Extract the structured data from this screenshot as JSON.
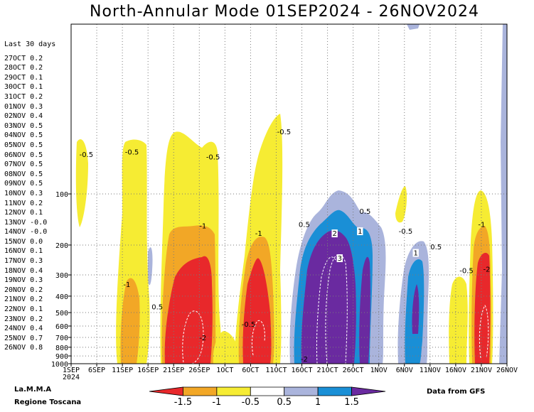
{
  "title": "North-Annular Mode 01SEP2024 - 26NOV2024",
  "sidebar": {
    "header": "Last 30 days",
    "entries": [
      {
        "date": "27OCT",
        "value": "0.2"
      },
      {
        "date": "28OCT",
        "value": "0.2"
      },
      {
        "date": "29OCT",
        "value": "0.1"
      },
      {
        "date": "30OCT",
        "value": "0.1"
      },
      {
        "date": "31OCT",
        "value": "0.2"
      },
      {
        "date": "01NOV",
        "value": "0.3"
      },
      {
        "date": "02NOV",
        "value": "0.4"
      },
      {
        "date": "03NOV",
        "value": "0.5"
      },
      {
        "date": "04NOV",
        "value": "0.5"
      },
      {
        "date": "05NOV",
        "value": "0.5"
      },
      {
        "date": "06NOV",
        "value": "0.5"
      },
      {
        "date": "07NOV",
        "value": "0.5"
      },
      {
        "date": "08NOV",
        "value": "0.5"
      },
      {
        "date": "09NOV",
        "value": "0.5"
      },
      {
        "date": "10NOV",
        "value": "0.3"
      },
      {
        "date": "11NOV",
        "value": "0.2"
      },
      {
        "date": "12NOV",
        "value": "0.1"
      },
      {
        "date": "13NOV",
        "value": "-0.0"
      },
      {
        "date": "14NOV",
        "value": "-0.0"
      },
      {
        "date": "15NOV",
        "value": "0.0"
      },
      {
        "date": "16NOV",
        "value": "0.1"
      },
      {
        "date": "17NOV",
        "value": "0.3"
      },
      {
        "date": "18NOV",
        "value": "0.4"
      },
      {
        "date": "19NOV",
        "value": "0.3"
      },
      {
        "date": "20NOV",
        "value": "0.2"
      },
      {
        "date": "21NOV",
        "value": "0.2"
      },
      {
        "date": "22NOV",
        "value": "0.1"
      },
      {
        "date": "23NOV",
        "value": "0.2"
      },
      {
        "date": "24NOV",
        "value": "0.4"
      },
      {
        "date": "25NOV",
        "value": "0.7"
      },
      {
        "date": "26NOV",
        "value": "0.8"
      }
    ]
  },
  "footer": {
    "org_line1": "La.M.M.A",
    "org_line2": "Regione Toscana",
    "source": "Data from GFS"
  },
  "colors": {
    "red": "#e8282b",
    "orange": "#f2a726",
    "yellow": "#f6ec33",
    "white": "#ffffff",
    "lavender": "#aab4dc",
    "blue": "#1a8fd6",
    "purple": "#6a2aa0"
  },
  "chart_data": {
    "type": "heatmap",
    "x_axis": {
      "ticks": [
        "1SEP",
        "6SEP",
        "11SEP",
        "16SEP",
        "21SEP",
        "26SEP",
        "1OCT",
        "6OCT",
        "11OCT",
        "16OCT",
        "21OCT",
        "26OCT",
        "1NOV",
        "6NOV",
        "11NOV",
        "16NOV",
        "21NOV",
        "26NOV"
      ],
      "year_label": "2024",
      "range": [
        "2024-09-01",
        "2024-11-26"
      ]
    },
    "y_axis": {
      "ticks": [
        "100",
        "200",
        "300",
        "400",
        "500",
        "600",
        "700",
        "800",
        "900",
        "1000"
      ],
      "scale": "log-pressure",
      "range": [
        1000,
        10
      ]
    },
    "grid": "dotted",
    "colorbar": {
      "levels": [
        "-1.5",
        "-1",
        "-0.5",
        "0.5",
        "1",
        "1.5"
      ],
      "bins": [
        "red",
        "orange",
        "yellow",
        "white",
        "lavender",
        "blue",
        "purple"
      ]
    },
    "contour_labels": [
      {
        "text": "-0.5",
        "date": "2024-09-04",
        "p": 60
      },
      {
        "text": "-0.5",
        "date": "2024-09-13",
        "p": 58
      },
      {
        "text": "-0.5",
        "date": "2024-09-29",
        "p": 62
      },
      {
        "text": "-0.5",
        "date": "2024-10-13",
        "p": 44
      },
      {
        "text": "-1",
        "date": "2024-09-27",
        "p": 158
      },
      {
        "text": "-1",
        "date": "2024-10-08",
        "p": 175
      },
      {
        "text": "-1",
        "date": "2024-09-12",
        "p": 350
      },
      {
        "text": "0.5",
        "date": "2024-09-18",
        "p": 475
      },
      {
        "text": "-2",
        "date": "2024-09-27",
        "p": 720
      },
      {
        "text": "-0.5",
        "date": "2024-10-06",
        "p": 600
      },
      {
        "text": "0.5",
        "date": "2024-10-17",
        "p": 155
      },
      {
        "text": "2",
        "date": "2024-10-23",
        "p": 175
      },
      {
        "text": "3",
        "date": "2024-10-24",
        "p": 245
      },
      {
        "text": "1",
        "date": "2024-10-28",
        "p": 170
      },
      {
        "text": "0.5",
        "date": "2024-10-29",
        "p": 130
      },
      {
        "text": "-2",
        "date": "2024-10-17",
        "p": 960
      },
      {
        "text": "-0.5",
        "date": "2024-11-06",
        "p": 170
      },
      {
        "text": "1",
        "date": "2024-11-08",
        "p": 228
      },
      {
        "text": "0.5",
        "date": "2024-11-12",
        "p": 210
      },
      {
        "text": "-0.5",
        "date": "2024-11-18",
        "p": 290
      },
      {
        "text": "-1",
        "date": "2024-11-21",
        "p": 155
      },
      {
        "text": "-2",
        "date": "2024-11-22",
        "p": 285
      }
    ]
  }
}
